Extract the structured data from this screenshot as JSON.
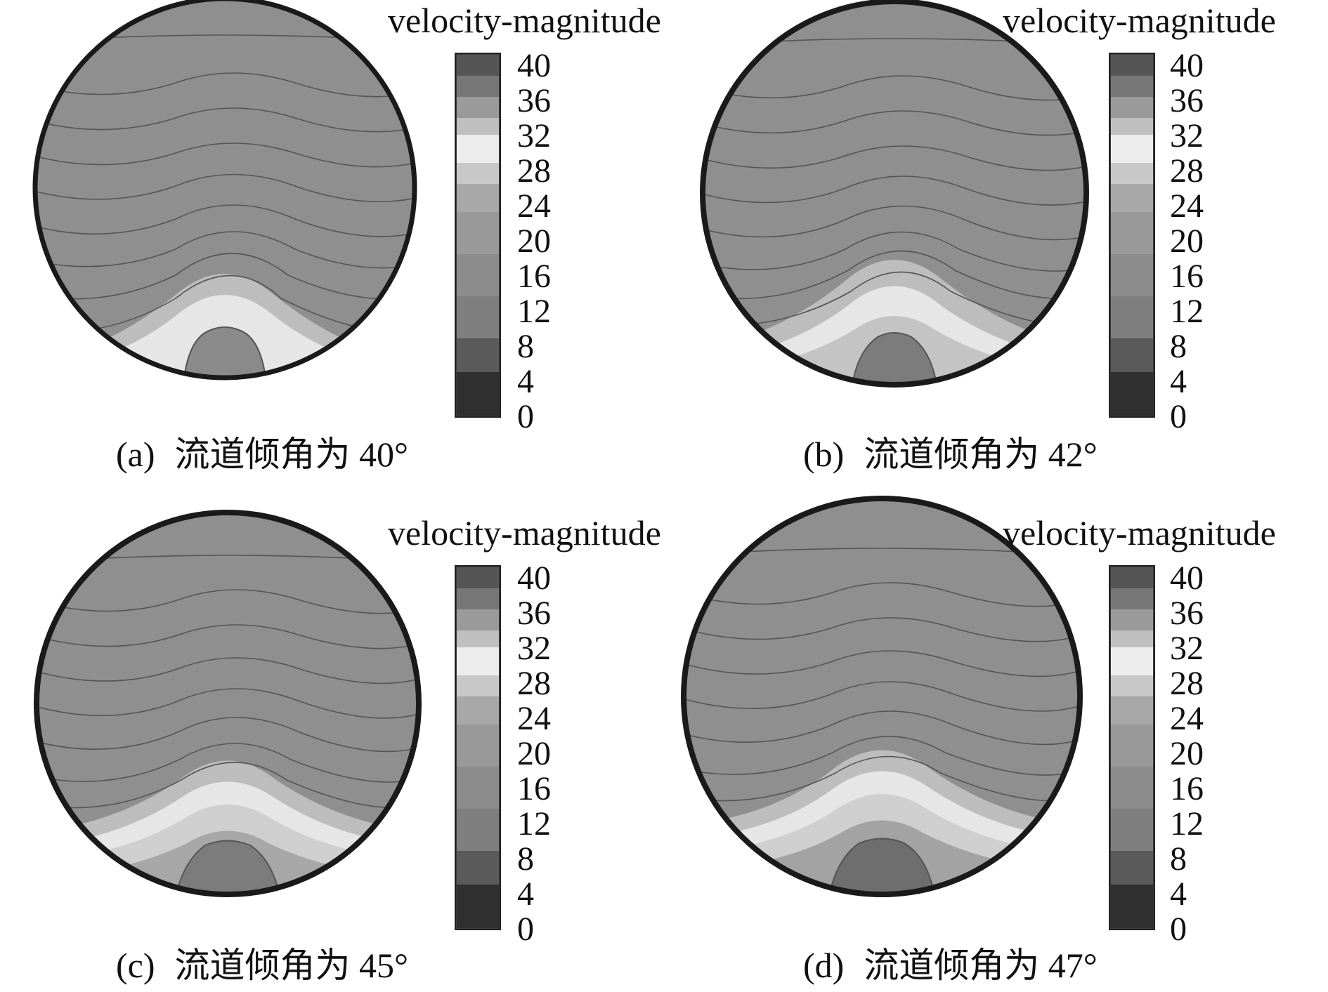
{
  "legend_ticks": [
    "40",
    "36",
    "32",
    "28",
    "24",
    "20",
    "16",
    "12",
    "8",
    "4",
    "0"
  ],
  "panels": [
    {
      "legend_title": "velocity-magnitude",
      "tag": "(a)",
      "caption": "流道倾角为 40°"
    },
    {
      "legend_title": "velocity-magnitude",
      "tag": "(b)",
      "caption": "流道倾角为 42°"
    },
    {
      "legend_title": "velocity-magnitude",
      "tag": "(c)",
      "caption": "流道倾角为 45°"
    },
    {
      "legend_title": "velocity-magnitude",
      "tag": "(d)",
      "caption": "流道倾角为 47°"
    }
  ],
  "colors": {
    "field": "#8f8f8f",
    "contour": "#555555",
    "rim": "#1a1a1a",
    "band_light": "#e6e6e6",
    "band_mid": "#b8b8b8",
    "core": "#7c7c7c",
    "legend_dark": "#3a3a3a",
    "legend_light": "#ececec"
  }
}
